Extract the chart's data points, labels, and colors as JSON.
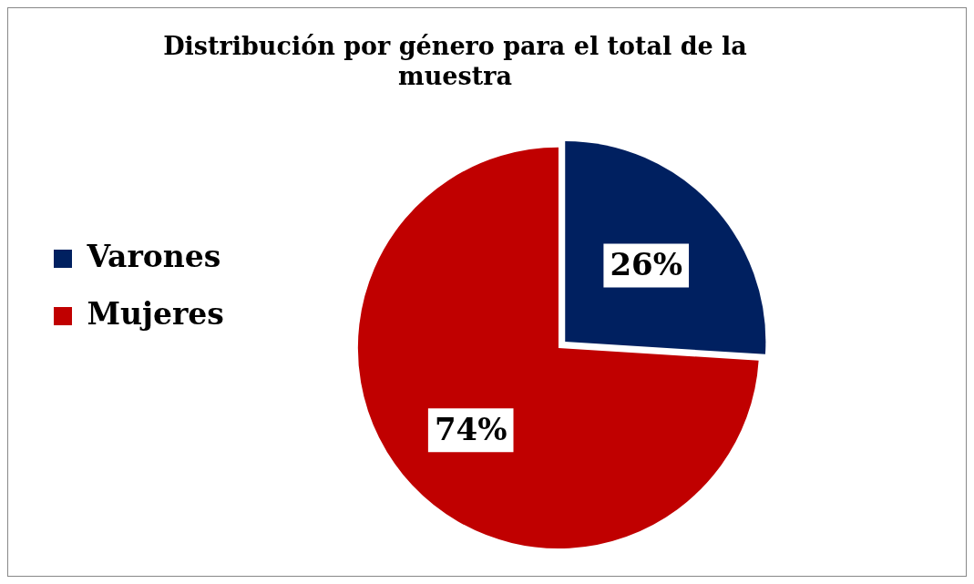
{
  "chart_data": {
    "type": "pie",
    "title": "Distribución por género para el total de la muestra",
    "categories": [
      "Varones",
      "Mujeres"
    ],
    "values": [
      26,
      74
    ],
    "colors": [
      "#002060",
      "#c00000"
    ],
    "value_labels": [
      "26%",
      "74%"
    ],
    "legend": "left"
  }
}
